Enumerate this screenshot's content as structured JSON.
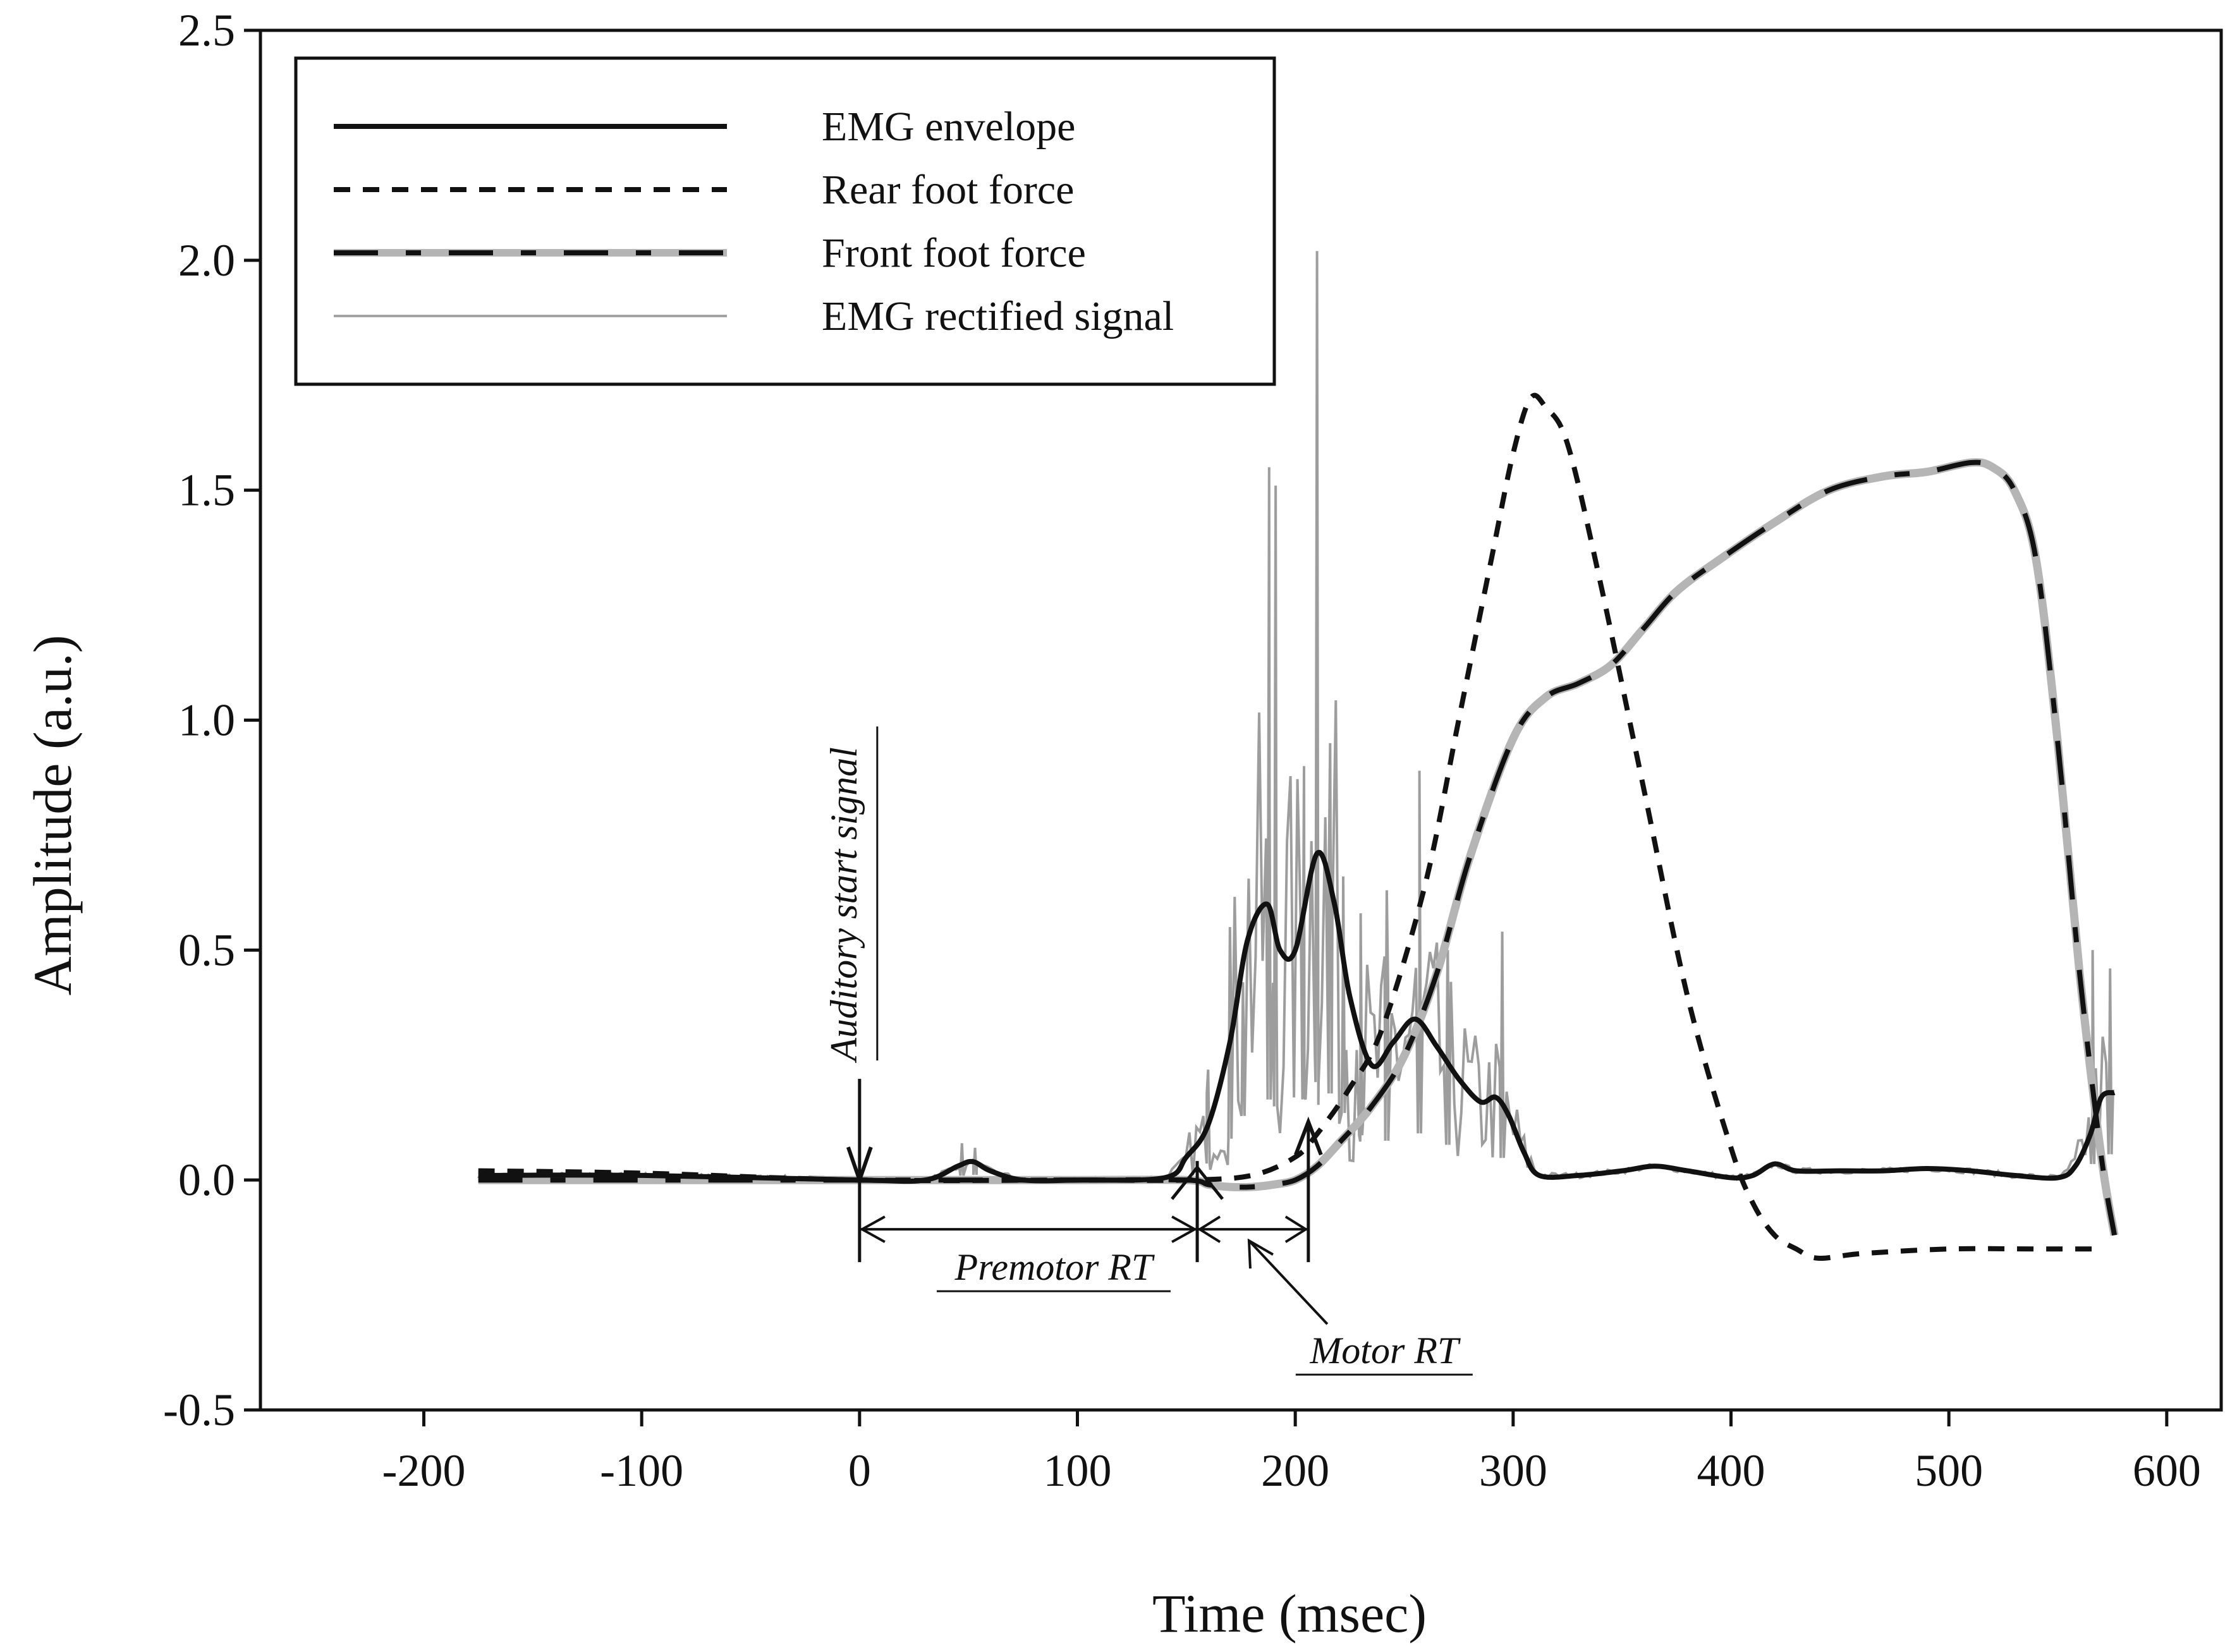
{
  "chart_data": {
    "type": "line",
    "xlabel": "Time (msec)",
    "ylabel": "Amplitude (a.u.)",
    "xlim": [
      -275,
      625
    ],
    "ylim": [
      -0.5,
      2.5
    ],
    "x_ticks": [
      -200,
      -100,
      0,
      100,
      200,
      300,
      400,
      500,
      600
    ],
    "x_tick_labels": [
      "-200",
      "-100",
      "0",
      "100",
      "200",
      "300",
      "400",
      "500",
      "600"
    ],
    "y_ticks": [
      -0.5,
      0.0,
      0.5,
      1.0,
      1.5,
      2.0,
      2.5
    ],
    "y_tick_labels": [
      "-0.5",
      "0.0",
      "0.5",
      "1.0",
      "1.5",
      "2.0",
      "2.5"
    ],
    "grid": false,
    "legend_position": "top-left",
    "series": [
      {
        "name": "EMG envelope",
        "style": "solid-black",
        "x": [
          -175,
          -100,
          0,
          30,
          45,
          52,
          60,
          75,
          100,
          140,
          150,
          160,
          170,
          178,
          187,
          193,
          200,
          210,
          218,
          225,
          235,
          245,
          255,
          265,
          275,
          285,
          292,
          298,
          305,
          312,
          330,
          350,
          365,
          380,
          400,
          410,
          420,
          430,
          450,
          470,
          490,
          510,
          530,
          550,
          558,
          565,
          570,
          576
        ],
        "y": [
          0.01,
          0.01,
          0.0,
          0.0,
          0.03,
          0.04,
          0.02,
          0.0,
          0.0,
          0.005,
          0.05,
          0.12,
          0.3,
          0.52,
          0.6,
          0.5,
          0.5,
          0.71,
          0.6,
          0.4,
          0.25,
          0.3,
          0.35,
          0.29,
          0.22,
          0.17,
          0.18,
          0.14,
          0.06,
          0.01,
          0.01,
          0.02,
          0.03,
          0.02,
          0.005,
          0.01,
          0.035,
          0.02,
          0.02,
          0.02,
          0.025,
          0.02,
          0.01,
          0.005,
          0.03,
          0.1,
          0.18,
          0.19
        ]
      },
      {
        "name": "Rear foot force",
        "style": "short-dash-black",
        "x": [
          -175,
          -100,
          0,
          100,
          150,
          180,
          200,
          210,
          225,
          240,
          260,
          275,
          290,
          300,
          308,
          315,
          325,
          340,
          360,
          380,
          400,
          410,
          420,
          430,
          440,
          460,
          500,
          540,
          560,
          570
        ],
        "y": [
          0.02,
          0.015,
          0.0,
          0.0,
          0.0,
          0.01,
          0.05,
          0.1,
          0.2,
          0.33,
          0.65,
          1.0,
          1.35,
          1.58,
          1.7,
          1.68,
          1.6,
          1.3,
          0.85,
          0.4,
          0.07,
          -0.05,
          -0.12,
          -0.15,
          -0.17,
          -0.16,
          -0.15,
          -0.15,
          -0.15,
          -0.15
        ]
      },
      {
        "name": "Front foot force",
        "style": "dash-gray-black",
        "x": [
          -175,
          -100,
          0,
          100,
          150,
          160,
          170,
          180,
          190,
          200,
          210,
          220,
          235,
          250,
          265,
          280,
          300,
          315,
          330,
          345,
          360,
          375,
          395,
          420,
          445,
          470,
          490,
          510,
          520,
          530,
          540,
          550,
          560,
          570,
          576
        ],
        "y": [
          0.0,
          0.0,
          0.0,
          0.0,
          0.0,
          -0.01,
          -0.015,
          -0.015,
          -0.01,
          0.0,
          0.03,
          0.08,
          0.16,
          0.27,
          0.45,
          0.7,
          0.96,
          1.05,
          1.08,
          1.12,
          1.2,
          1.28,
          1.35,
          1.43,
          1.5,
          1.53,
          1.54,
          1.56,
          1.55,
          1.5,
          1.35,
          0.95,
          0.45,
          0.05,
          -0.12
        ]
      },
      {
        "name": "EMG rectified signal",
        "style": "thin-gray",
        "description_of_shape": "noisy rectified EMG following envelope with spikes up to 2.02 near 210 ms and 1.55 near 188 ms",
        "peaks": [
          {
            "x": 47,
            "y": 0.08
          },
          {
            "x": 53,
            "y": 0.07
          },
          {
            "x": 160,
            "y": 0.24
          },
          {
            "x": 170,
            "y": 0.55
          },
          {
            "x": 176,
            "y": 0.43
          },
          {
            "x": 188,
            "y": 1.55
          },
          {
            "x": 191,
            "y": 1.51
          },
          {
            "x": 204,
            "y": 0.9
          },
          {
            "x": 210,
            "y": 2.02
          },
          {
            "x": 216,
            "y": 0.95
          },
          {
            "x": 222,
            "y": 0.66
          },
          {
            "x": 230,
            "y": 0.58
          },
          {
            "x": 242,
            "y": 0.63
          },
          {
            "x": 257,
            "y": 0.89
          },
          {
            "x": 270,
            "y": 0.5
          },
          {
            "x": 295,
            "y": 0.54
          },
          {
            "x": 566,
            "y": 0.5
          },
          {
            "x": 574,
            "y": 0.46
          }
        ]
      }
    ],
    "annotations": [
      {
        "text": "Auditory start signal",
        "x": 0,
        "y": 0.22,
        "orientation": "vertical"
      },
      {
        "text": "Premotor RT",
        "from_x": 0,
        "to_x": 155
      },
      {
        "text": "Motor RT",
        "from_x": 155,
        "to_x": 206
      }
    ]
  },
  "legend": {
    "items": [
      {
        "label": "EMG envelope"
      },
      {
        "label": "Rear foot force"
      },
      {
        "label": "Front foot force"
      },
      {
        "label": "EMG rectified signal"
      }
    ]
  }
}
